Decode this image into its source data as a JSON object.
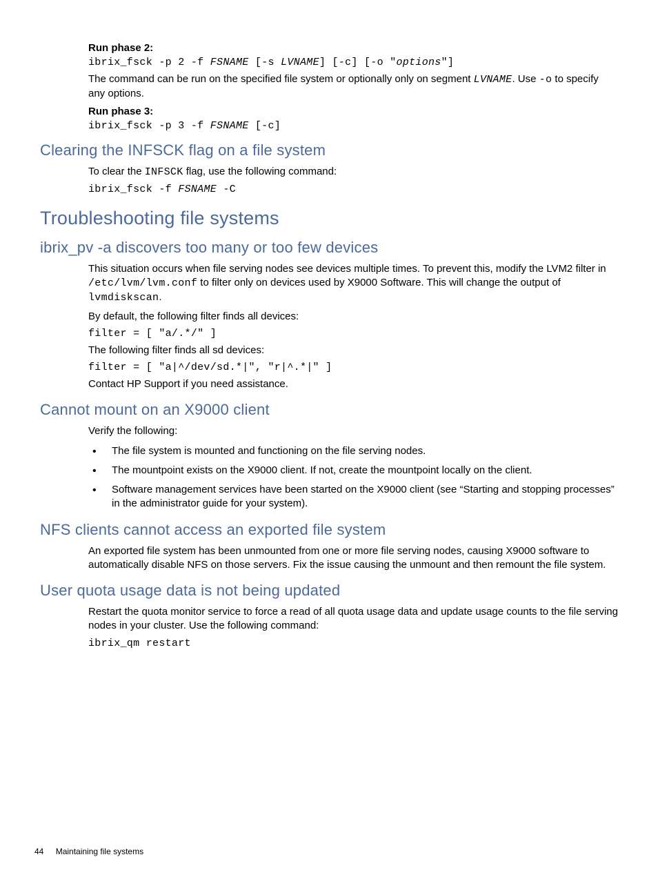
{
  "colors": {
    "heading": "#4b6a9b",
    "text": "#000000",
    "background": "#ffffff"
  },
  "typography": {
    "body_family": "Arial, Helvetica, sans-serif",
    "code_family": "Courier New, monospace",
    "h1_size_pt": 20,
    "h2_size_pt": 16,
    "body_size_pt": 11,
    "code_size_pt": 11
  },
  "sections": {
    "runphase2": {
      "label": "Run phase 2:",
      "cmd_pre": "ibrix_fsck -p 2 -f ",
      "cmd_fs": "FSNAME",
      "cmd_mid1": " [-s ",
      "cmd_lv": "LVNAME",
      "cmd_mid2": "] [-c] [-o \"",
      "cmd_opts": "options",
      "cmd_post": "\"]",
      "desc_pre": "The command can be run on the specified file system or optionally only on segment ",
      "desc_lv": "LVNAME",
      "desc_mid": ". Use ",
      "desc_o": "-o",
      "desc_post": " to specify any options."
    },
    "runphase3": {
      "label": "Run phase 3:",
      "cmd_pre": "ibrix_fsck -p 3 -f ",
      "cmd_fs": "FSNAME",
      "cmd_post": " [-c]"
    },
    "clearing": {
      "title": "Clearing the INFSCK flag on a file system",
      "desc_pre": "To clear the ",
      "desc_flag": "INFSCK",
      "desc_post": " flag, use the following command:",
      "cmd_pre": "ibrix_fsck -f ",
      "cmd_fs": "FSNAME",
      "cmd_post": " -C"
    },
    "troubleshooting": {
      "title": "Troubleshooting file systems"
    },
    "ibrixpv": {
      "title": "ibrix_pv -a discovers too many or too few devices",
      "p1_pre": "This situation occurs when file serving nodes see devices multiple times. To prevent this, modify the LVM2 filter in ",
      "p1_path": "/etc/lvm/lvm.conf",
      "p1_mid": " to filter only on devices used by X9000 Software. This will change the output of ",
      "p1_cmd": "lvmdiskscan",
      "p1_post": ".",
      "p2": "By default, the following filter finds all devices:",
      "filter1": "filter = [ \"a/.*/\" ]",
      "p3": "The following filter finds all sd devices:",
      "filter2": "filter = [ \"a|^/dev/sd.*|\", \"r|^.*|\" ]",
      "p4": "Contact HP Support if you need assistance."
    },
    "cannotmount": {
      "title": "Cannot mount on an X9000 client",
      "intro": "Verify the following:",
      "bullets": [
        "The file system is mounted and functioning on the file serving nodes.",
        "The mountpoint exists on the X9000 client. If not, create the mountpoint locally on the client.",
        "Software management services have been started on the X9000 client (see “Starting and stopping processes” in the administrator guide for your system)."
      ]
    },
    "nfs": {
      "title": "NFS clients cannot access an exported file system",
      "desc": "An exported file system has been unmounted from one or more file serving nodes, causing X9000 software to automatically disable NFS on those servers. Fix the issue causing the unmount and then remount the file system."
    },
    "quota": {
      "title": "User quota usage data is not being updated",
      "desc": "Restart the quota monitor service to force a read of all quota usage data and update usage counts to the file serving nodes in your cluster. Use the following command:",
      "cmd": "ibrix_qm restart"
    }
  },
  "footer": {
    "page": "44",
    "title": "Maintaining file systems"
  }
}
